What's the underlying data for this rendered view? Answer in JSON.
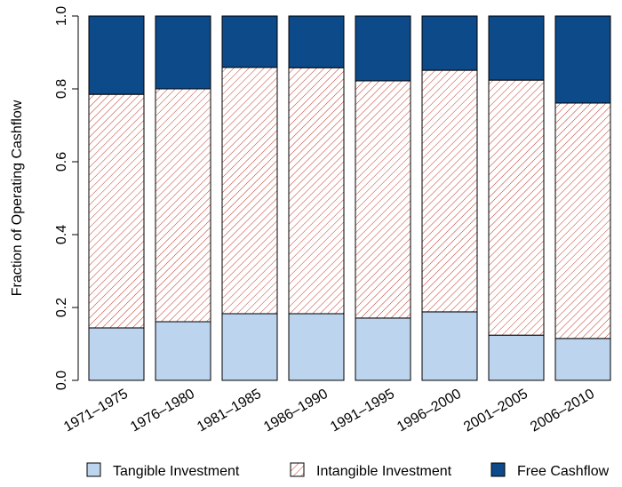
{
  "chart_data": {
    "type": "stacked_bar",
    "y_label": "Fraction of Operating Cashflow",
    "categories": [
      "1971–1975",
      "1976–1980",
      "1981–1985",
      "1986–1990",
      "1991–1995",
      "1996–2000",
      "2001–2005",
      "2006–2010"
    ],
    "series": [
      {
        "name": "Tangible Investment",
        "color": "#bdd4ee",
        "values": [
          0.144,
          0.161,
          0.183,
          0.183,
          0.171,
          0.188,
          0.124,
          0.115
        ]
      },
      {
        "name": "Intangible Investment",
        "color": "#c0392b",
        "pattern": "hatch",
        "values": [
          0.641,
          0.639,
          0.676,
          0.675,
          0.651,
          0.663,
          0.7,
          0.646
        ]
      },
      {
        "name": "Free Cashflow",
        "color": "#0d4a8a",
        "values": [
          0.215,
          0.2,
          0.141,
          0.142,
          0.178,
          0.149,
          0.176,
          0.239
        ]
      }
    ],
    "ylim": [
      0,
      1
    ],
    "yticks": [
      {
        "value": 0,
        "label": "0.0"
      },
      0.2,
      0.4,
      0.6,
      0.8,
      {
        "value": 1,
        "label": "1.0"
      }
    ]
  }
}
